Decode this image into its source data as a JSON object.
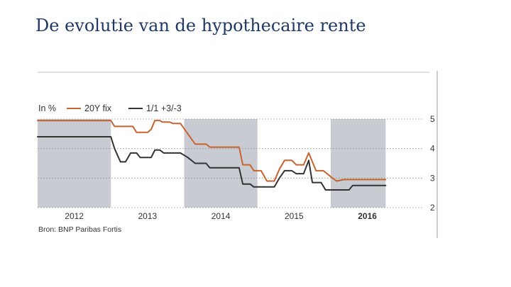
{
  "page": {
    "title": "De evolutie van de hypothecaire rente"
  },
  "chart_data": {
    "type": "line",
    "unit_label": "In %",
    "source": "Bron: BNP Paribas Fortis",
    "x_range": [
      2011.25,
      2016.5
    ],
    "y_range": [
      2,
      5
    ],
    "y_ticks": [
      "2",
      "3",
      "4",
      "5"
    ],
    "x_tick_labels": [
      {
        "label": "2012",
        "x": 2011.75,
        "bold": false
      },
      {
        "label": "2013",
        "x": 2012.75,
        "bold": false
      },
      {
        "label": "2014",
        "x": 2013.75,
        "bold": false
      },
      {
        "label": "2015",
        "x": 2014.75,
        "bold": false
      },
      {
        "label": "2016",
        "x": 2015.75,
        "bold": true
      }
    ],
    "shaded_years": [
      [
        2011.25,
        2012.25
      ],
      [
        2013.25,
        2014.25
      ],
      [
        2015.25,
        2016.0
      ]
    ],
    "grid": "dotted horizontal",
    "legend_position": "top-left",
    "series": [
      {
        "name": "20Y fix",
        "color": "#c8622e",
        "points": [
          [
            2011.25,
            4.95
          ],
          [
            2012.25,
            4.95
          ],
          [
            2012.3,
            4.75
          ],
          [
            2012.55,
            4.75
          ],
          [
            2012.6,
            4.55
          ],
          [
            2012.75,
            4.55
          ],
          [
            2012.8,
            4.65
          ],
          [
            2012.85,
            4.95
          ],
          [
            2012.92,
            4.95
          ],
          [
            2012.95,
            4.9
          ],
          [
            2013.05,
            4.9
          ],
          [
            2013.1,
            4.85
          ],
          [
            2013.2,
            4.85
          ],
          [
            2013.3,
            4.5
          ],
          [
            2013.4,
            4.15
          ],
          [
            2013.55,
            4.15
          ],
          [
            2013.6,
            4.05
          ],
          [
            2013.75,
            4.05
          ],
          [
            2013.95,
            4.05
          ],
          [
            2014.0,
            4.05
          ],
          [
            2014.05,
            3.45
          ],
          [
            2014.15,
            3.45
          ],
          [
            2014.2,
            3.25
          ],
          [
            2014.3,
            3.25
          ],
          [
            2014.38,
            2.9
          ],
          [
            2014.48,
            2.9
          ],
          [
            2014.55,
            3.3
          ],
          [
            2014.62,
            3.6
          ],
          [
            2014.72,
            3.6
          ],
          [
            2014.78,
            3.45
          ],
          [
            2014.88,
            3.45
          ],
          [
            2014.95,
            3.85
          ],
          [
            2015.05,
            3.25
          ],
          [
            2015.15,
            3.25
          ],
          [
            2015.25,
            3.05
          ],
          [
            2015.33,
            2.9
          ],
          [
            2015.43,
            2.95
          ],
          [
            2016.0,
            2.95
          ]
        ]
      },
      {
        "name": "1/1 +3/-3",
        "color": "#333333",
        "points": [
          [
            2011.25,
            4.4
          ],
          [
            2012.25,
            4.4
          ],
          [
            2012.3,
            4.0
          ],
          [
            2012.38,
            3.55
          ],
          [
            2012.45,
            3.55
          ],
          [
            2012.52,
            3.85
          ],
          [
            2012.6,
            3.85
          ],
          [
            2012.65,
            3.7
          ],
          [
            2012.8,
            3.7
          ],
          [
            2012.85,
            3.95
          ],
          [
            2012.92,
            3.95
          ],
          [
            2012.97,
            3.85
          ],
          [
            2013.2,
            3.85
          ],
          [
            2013.3,
            3.7
          ],
          [
            2013.4,
            3.5
          ],
          [
            2013.55,
            3.5
          ],
          [
            2013.6,
            3.35
          ],
          [
            2013.75,
            3.35
          ],
          [
            2013.95,
            3.35
          ],
          [
            2014.0,
            3.35
          ],
          [
            2014.05,
            2.8
          ],
          [
            2014.15,
            2.8
          ],
          [
            2014.2,
            2.7
          ],
          [
            2014.48,
            2.7
          ],
          [
            2014.55,
            3.0
          ],
          [
            2014.62,
            3.25
          ],
          [
            2014.72,
            3.25
          ],
          [
            2014.78,
            3.15
          ],
          [
            2014.88,
            3.15
          ],
          [
            2014.95,
            3.6
          ],
          [
            2015.0,
            2.85
          ],
          [
            2015.12,
            2.85
          ],
          [
            2015.18,
            2.6
          ],
          [
            2015.5,
            2.6
          ],
          [
            2015.55,
            2.75
          ],
          [
            2016.0,
            2.75
          ]
        ]
      }
    ]
  }
}
